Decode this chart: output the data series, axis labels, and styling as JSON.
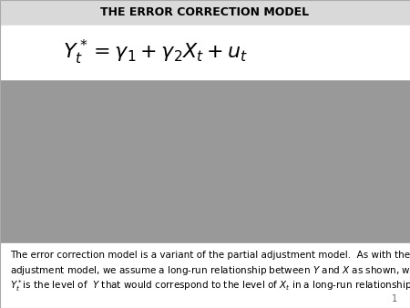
{
  "title": "THE ERROR CORRECTION MODEL",
  "title_fontsize": 9,
  "title_color": "#000000",
  "title_bg": "#d9d9d9",
  "main_bg": "#999999",
  "formula_bg": "#ffffff",
  "formula": "$Y_t^* = \\gamma_1 + \\gamma_2 X_t + u_t$",
  "formula_fontsize": 16,
  "bottom_bg": "#ffffff",
  "bottom_text_line1": "The error correction model is a variant of the partial adjustment model.  As with the partial",
  "bottom_text_line2": "adjustment model, we assume a long-run relationship between ",
  "bottom_text_line2_italic": "Y",
  "bottom_text_line2b": " and ",
  "bottom_text_line2b_italic": "X",
  "bottom_text_line2c": " as shown, where",
  "bottom_text_line3a": "",
  "bottom_text_line3_italic": "Y",
  "bottom_text_line3_sup": "*",
  "bottom_text_line3b": "is the level of  ",
  "bottom_text_line3b_italic": "Y",
  "bottom_text_line3c": " that would correspond to the level of ",
  "bottom_text_line3c_italic": "X",
  "bottom_text_line3d_sub": "t",
  "bottom_text_line3d": " in a long-run relationship.",
  "page_number": "1",
  "text_fontsize": 7.5
}
